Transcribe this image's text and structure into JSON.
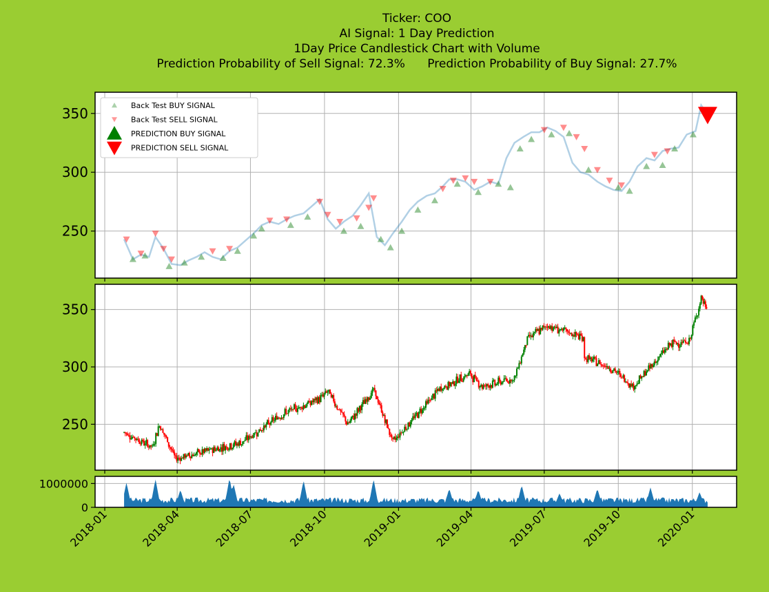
{
  "chart_data": [
    {
      "type": "line",
      "panel": "signals",
      "title_lines": [
        "Ticker: COO",
        "AI Signal: 1 Day Prediction",
        "1Day Price Candlestick Chart with Volume",
        "Prediction Probability of Sell Signal: 72.3%      Prediction Probability of Buy Signal: 27.7%"
      ],
      "ylim": [
        210,
        368
      ],
      "yticks": [
        250,
        300,
        350
      ],
      "grid": true,
      "legend_position": "top-left",
      "legend": [
        {
          "label": "Back Test BUY SIGNAL",
          "marker": "triangle-up",
          "color": "#2e8b2e",
          "alpha": 0.4
        },
        {
          "label": "Back Test SELL SIGNAL",
          "marker": "triangle-down",
          "color": "#ff0000",
          "alpha": 0.4
        },
        {
          "label": "PREDICTION BUY SIGNAL",
          "marker": "triangle-up",
          "color": "#008000"
        },
        {
          "label": "PREDICTION SELL SIGNAL",
          "marker": "triangle-down",
          "color": "#ff0000"
        }
      ],
      "prediction": {
        "signal": "SELL",
        "date": "2020-01-20",
        "price": 349
      },
      "price_series": {
        "dates": [
          "2018-01-25",
          "2018-02-05",
          "2018-02-15",
          "2018-02-25",
          "2018-03-05",
          "2018-03-15",
          "2018-03-25",
          "2018-04-05",
          "2018-04-15",
          "2018-04-25",
          "2018-05-05",
          "2018-05-15",
          "2018-05-25",
          "2018-06-05",
          "2018-06-15",
          "2018-06-25",
          "2018-07-05",
          "2018-07-15",
          "2018-07-25",
          "2018-08-05",
          "2018-08-15",
          "2018-08-25",
          "2018-09-05",
          "2018-09-15",
          "2018-09-25",
          "2018-10-05",
          "2018-10-15",
          "2018-10-25",
          "2018-11-05",
          "2018-11-15",
          "2018-11-25",
          "2018-12-05",
          "2018-12-15",
          "2018-12-25",
          "2019-01-05",
          "2019-01-15",
          "2019-01-25",
          "2019-02-05",
          "2019-02-15",
          "2019-02-25",
          "2019-03-05",
          "2019-03-15",
          "2019-03-25",
          "2019-04-05",
          "2019-04-15",
          "2019-04-25",
          "2019-05-05",
          "2019-05-15",
          "2019-05-25",
          "2019-06-05",
          "2019-06-15",
          "2019-06-25",
          "2019-07-05",
          "2019-07-15",
          "2019-07-25",
          "2019-08-05",
          "2019-08-15",
          "2019-08-25",
          "2019-09-05",
          "2019-09-15",
          "2019-09-25",
          "2019-10-05",
          "2019-10-15",
          "2019-10-25",
          "2019-11-05",
          "2019-11-15",
          "2019-11-25",
          "2019-12-05",
          "2019-12-15",
          "2019-12-25",
          "2020-01-05",
          "2020-01-12",
          "2020-01-20"
        ],
        "close": [
          243,
          226,
          230,
          228,
          245,
          235,
          222,
          221,
          225,
          228,
          232,
          228,
          226,
          233,
          236,
          242,
          248,
          255,
          258,
          256,
          260,
          263,
          265,
          271,
          277,
          260,
          252,
          258,
          263,
          272,
          282,
          245,
          238,
          248,
          258,
          268,
          275,
          280,
          282,
          288,
          294,
          294,
          292,
          285,
          288,
          292,
          290,
          312,
          325,
          330,
          334,
          334,
          338,
          335,
          330,
          308,
          300,
          298,
          292,
          288,
          285,
          284,
          292,
          305,
          312,
          310,
          318,
          320,
          321,
          332,
          335,
          357,
          349
        ]
      },
      "buy_signals": [
        {
          "date": "2018-02-05",
          "price": 226
        },
        {
          "date": "2018-02-20",
          "price": 229
        },
        {
          "date": "2018-03-22",
          "price": 220
        },
        {
          "date": "2018-04-10",
          "price": 223
        },
        {
          "date": "2018-05-01",
          "price": 228
        },
        {
          "date": "2018-05-28",
          "price": 227
        },
        {
          "date": "2018-06-15",
          "price": 233
        },
        {
          "date": "2018-07-05",
          "price": 246
        },
        {
          "date": "2018-07-15",
          "price": 252
        },
        {
          "date": "2018-08-20",
          "price": 255
        },
        {
          "date": "2018-09-10",
          "price": 262
        },
        {
          "date": "2018-10-25",
          "price": 250
        },
        {
          "date": "2018-11-15",
          "price": 254
        },
        {
          "date": "2018-12-10",
          "price": 243
        },
        {
          "date": "2018-12-22",
          "price": 236
        },
        {
          "date": "2019-01-05",
          "price": 250
        },
        {
          "date": "2019-01-25",
          "price": 268
        },
        {
          "date": "2019-02-15",
          "price": 276
        },
        {
          "date": "2019-03-15",
          "price": 290
        },
        {
          "date": "2019-04-10",
          "price": 283
        },
        {
          "date": "2019-05-05",
          "price": 290
        },
        {
          "date": "2019-05-20",
          "price": 287
        },
        {
          "date": "2019-06-01",
          "price": 320
        },
        {
          "date": "2019-06-15",
          "price": 328
        },
        {
          "date": "2019-07-10",
          "price": 332
        },
        {
          "date": "2019-08-01",
          "price": 333
        },
        {
          "date": "2019-08-25",
          "price": 302
        },
        {
          "date": "2019-10-01",
          "price": 287
        },
        {
          "date": "2019-10-15",
          "price": 284
        },
        {
          "date": "2019-11-05",
          "price": 305
        },
        {
          "date": "2019-11-25",
          "price": 306
        },
        {
          "date": "2019-12-10",
          "price": 320
        },
        {
          "date": "2020-01-02",
          "price": 332
        }
      ],
      "sell_signals": [
        {
          "date": "2018-01-28",
          "price": 243
        },
        {
          "date": "2018-02-15",
          "price": 231
        },
        {
          "date": "2018-03-05",
          "price": 248
        },
        {
          "date": "2018-03-15",
          "price": 235
        },
        {
          "date": "2018-03-25",
          "price": 226
        },
        {
          "date": "2018-05-15",
          "price": 233
        },
        {
          "date": "2018-06-05",
          "price": 235
        },
        {
          "date": "2018-07-25",
          "price": 259
        },
        {
          "date": "2018-08-15",
          "price": 260
        },
        {
          "date": "2018-09-25",
          "price": 275
        },
        {
          "date": "2018-10-05",
          "price": 264
        },
        {
          "date": "2018-10-20",
          "price": 258
        },
        {
          "date": "2018-11-10",
          "price": 261
        },
        {
          "date": "2018-11-25",
          "price": 270
        },
        {
          "date": "2018-12-01",
          "price": 278
        },
        {
          "date": "2019-02-25",
          "price": 286
        },
        {
          "date": "2019-03-10",
          "price": 293
        },
        {
          "date": "2019-03-25",
          "price": 295
        },
        {
          "date": "2019-04-05",
          "price": 292
        },
        {
          "date": "2019-04-25",
          "price": 292
        },
        {
          "date": "2019-07-01",
          "price": 336
        },
        {
          "date": "2019-07-25",
          "price": 338
        },
        {
          "date": "2019-08-10",
          "price": 330
        },
        {
          "date": "2019-08-20",
          "price": 320
        },
        {
          "date": "2019-09-05",
          "price": 302
        },
        {
          "date": "2019-09-20",
          "price": 293
        },
        {
          "date": "2019-10-05",
          "price": 289
        },
        {
          "date": "2019-11-15",
          "price": 315
        },
        {
          "date": "2019-12-01",
          "price": 318
        }
      ]
    },
    {
      "type": "candlestick",
      "panel": "candlestick",
      "ylim": [
        210,
        372
      ],
      "yticks": [
        250,
        300,
        350
      ],
      "grid": true,
      "up_color": "#008000",
      "down_color": "#ff0000",
      "segments": [
        {
          "from": "2018-01-25",
          "to": "2018-03-01",
          "start": 243,
          "end": 230
        },
        {
          "from": "2018-03-01",
          "to": "2018-03-10",
          "start": 230,
          "end": 250
        },
        {
          "from": "2018-03-10",
          "to": "2018-03-30",
          "start": 250,
          "end": 220
        },
        {
          "from": "2018-03-30",
          "to": "2018-06-20",
          "start": 220,
          "end": 234
        },
        {
          "from": "2018-06-20",
          "to": "2018-08-10",
          "start": 234,
          "end": 259
        },
        {
          "from": "2018-08-10",
          "to": "2018-09-25",
          "start": 259,
          "end": 272
        },
        {
          "from": "2018-09-25",
          "to": "2018-10-05",
          "start": 272,
          "end": 279
        },
        {
          "from": "2018-10-05",
          "to": "2018-10-30",
          "start": 279,
          "end": 250
        },
        {
          "from": "2018-10-30",
          "to": "2018-12-01",
          "start": 250,
          "end": 280
        },
        {
          "from": "2018-12-01",
          "to": "2018-12-25",
          "start": 280,
          "end": 235
        },
        {
          "from": "2018-12-25",
          "to": "2019-02-20",
          "start": 235,
          "end": 280
        },
        {
          "from": "2019-02-20",
          "to": "2019-03-30",
          "start": 280,
          "end": 294
        },
        {
          "from": "2019-03-30",
          "to": "2019-04-15",
          "start": 294,
          "end": 283
        },
        {
          "from": "2019-04-15",
          "to": "2019-05-25",
          "start": 283,
          "end": 290
        },
        {
          "from": "2019-05-25",
          "to": "2019-06-10",
          "start": 290,
          "end": 325
        },
        {
          "from": "2019-06-10",
          "to": "2019-07-05",
          "start": 325,
          "end": 336
        },
        {
          "from": "2019-07-05",
          "to": "2019-08-20",
          "start": 336,
          "end": 325
        },
        {
          "from": "2019-08-20",
          "to": "2019-09-20",
          "start": 308,
          "end": 300
        },
        {
          "from": "2019-09-20",
          "to": "2019-10-20",
          "start": 300,
          "end": 283
        },
        {
          "from": "2019-10-20",
          "to": "2019-12-05",
          "start": 283,
          "end": 320
        },
        {
          "from": "2019-12-05",
          "to": "2019-12-28",
          "start": 320,
          "end": 322
        },
        {
          "from": "2019-12-28",
          "to": "2020-01-12",
          "start": 322,
          "end": 360
        },
        {
          "from": "2020-01-12",
          "to": "2020-01-20",
          "start": 360,
          "end": 349
        }
      ]
    },
    {
      "type": "area",
      "panel": "volume",
      "color": "#1f77b4",
      "ylim": [
        0,
        1300000
      ],
      "yticks": [
        0,
        1000000
      ],
      "ytick_labels": [
        "0",
        "1000000"
      ],
      "grid": true,
      "from": "2018-01-25",
      "to": "2020-01-20",
      "base_volume": 300000,
      "spikes": [
        {
          "date": "2018-01-28",
          "volume": 950000
        },
        {
          "date": "2018-03-05",
          "volume": 1100000
        },
        {
          "date": "2018-04-05",
          "volume": 650000
        },
        {
          "date": "2018-06-05",
          "volume": 1150000
        },
        {
          "date": "2018-06-10",
          "volume": 900000
        },
        {
          "date": "2018-09-05",
          "volume": 1050000
        },
        {
          "date": "2018-12-01",
          "volume": 1100000
        },
        {
          "date": "2019-03-05",
          "volume": 700000
        },
        {
          "date": "2019-04-10",
          "volume": 650000
        },
        {
          "date": "2019-06-03",
          "volume": 850000
        },
        {
          "date": "2019-07-20",
          "volume": 500000
        },
        {
          "date": "2019-09-05",
          "volume": 700000
        },
        {
          "date": "2019-11-10",
          "volume": 750000
        },
        {
          "date": "2020-01-10",
          "volume": 550000
        }
      ]
    }
  ],
  "x_axis": {
    "range": [
      "2017-12-20",
      "2020-02-25"
    ],
    "tick_dates": [
      "2018-01-01",
      "2018-04-01",
      "2018-07-01",
      "2018-10-01",
      "2019-01-01",
      "2019-04-01",
      "2019-07-01",
      "2019-10-01",
      "2020-01-01"
    ],
    "tick_labels": [
      "2018-01",
      "2018-04",
      "2018-07",
      "2018-10",
      "2019-01",
      "2019-04",
      "2019-07",
      "2019-10",
      "2020-01"
    ]
  }
}
